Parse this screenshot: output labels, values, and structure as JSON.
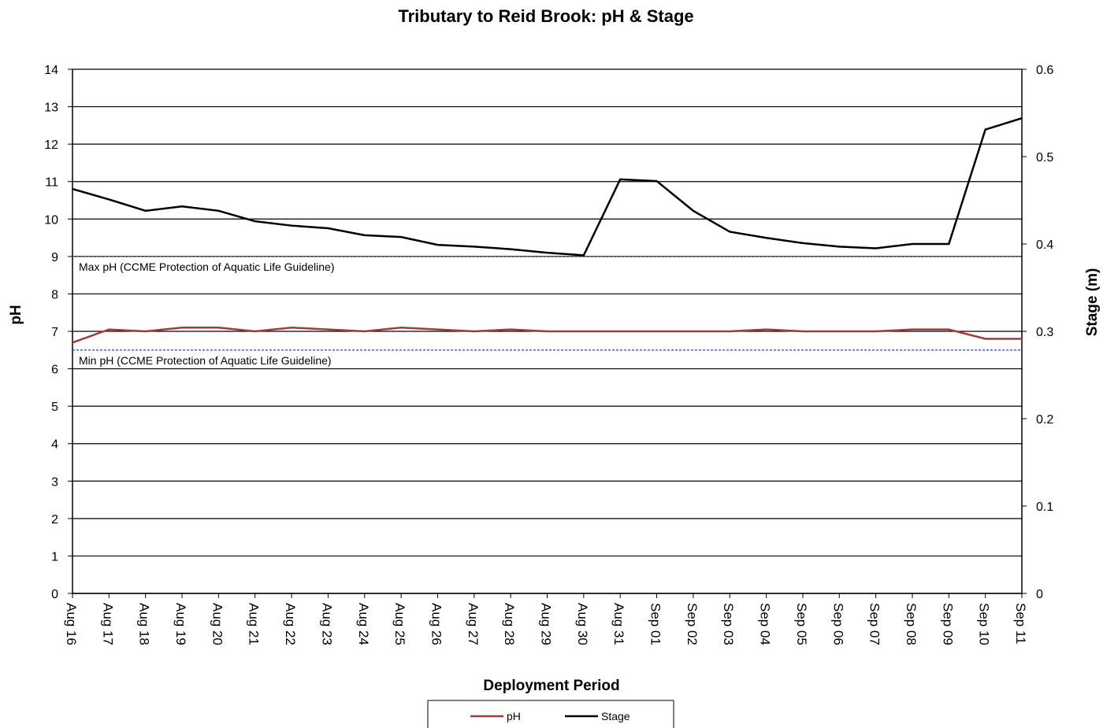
{
  "chart_data": {
    "type": "line",
    "title": "Tributary to Reid Brook: pH & Stage",
    "x_label": "Deployment Period",
    "y_label": "pH",
    "y2_label": "Stage (m)",
    "x": [
      "Aug 16",
      "Aug 17",
      "Aug 18",
      "Aug 19",
      "Aug 20",
      "Aug 21",
      "Aug 22",
      "Aug 23",
      "Aug 24",
      "Aug 25",
      "Aug 26",
      "Aug 27",
      "Aug 28",
      "Aug 29",
      "Aug 30",
      "Aug 31",
      "Sep 01",
      "Sep 02",
      "Sep 03",
      "Sep 04",
      "Sep 05",
      "Sep 06",
      "Sep 07",
      "Sep 08",
      "Sep 09",
      "Sep 10",
      "Sep 11"
    ],
    "series": [
      {
        "name": "pH",
        "color": "#a33a3a",
        "axis": "y",
        "values": [
          6.7,
          7.05,
          7.0,
          7.1,
          7.1,
          7.0,
          7.1,
          7.05,
          7.0,
          7.1,
          7.05,
          7.0,
          7.05,
          7.0,
          7.0,
          7.0,
          7.0,
          7.0,
          7.0,
          7.05,
          7.0,
          7.0,
          7.0,
          7.05,
          7.05,
          6.8,
          6.8
        ]
      },
      {
        "name": "Stage",
        "color": "#000000",
        "axis": "y2",
        "values": [
          0.463,
          0.451,
          0.438,
          0.443,
          0.438,
          0.426,
          0.421,
          0.418,
          0.41,
          0.408,
          0.399,
          0.397,
          0.394,
          0.39,
          0.387,
          0.474,
          0.472,
          0.438,
          0.414,
          0.407,
          0.401,
          0.397,
          0.395,
          0.4,
          0.4,
          0.531,
          0.544
        ]
      }
    ],
    "ylim": [
      0,
      14
    ],
    "yticks": [
      0,
      1,
      2,
      3,
      4,
      5,
      6,
      7,
      8,
      9,
      10,
      11,
      12,
      13,
      14
    ],
    "y2lim": [
      0,
      0.6
    ],
    "y2ticks": [
      0,
      0.1,
      0.2,
      0.3,
      0.4,
      0.5,
      0.6
    ],
    "grid": true,
    "reference_lines": [
      {
        "value": 9,
        "label": "Max pH  (CCME  Protection of Aquatic Life Guideline)",
        "color": "#3344aa"
      },
      {
        "value": 6.5,
        "label": "Min pH  (CCME  Protection of Aquatic Life Guideline)",
        "color": "#3344aa"
      }
    ],
    "legend": "bottom"
  }
}
